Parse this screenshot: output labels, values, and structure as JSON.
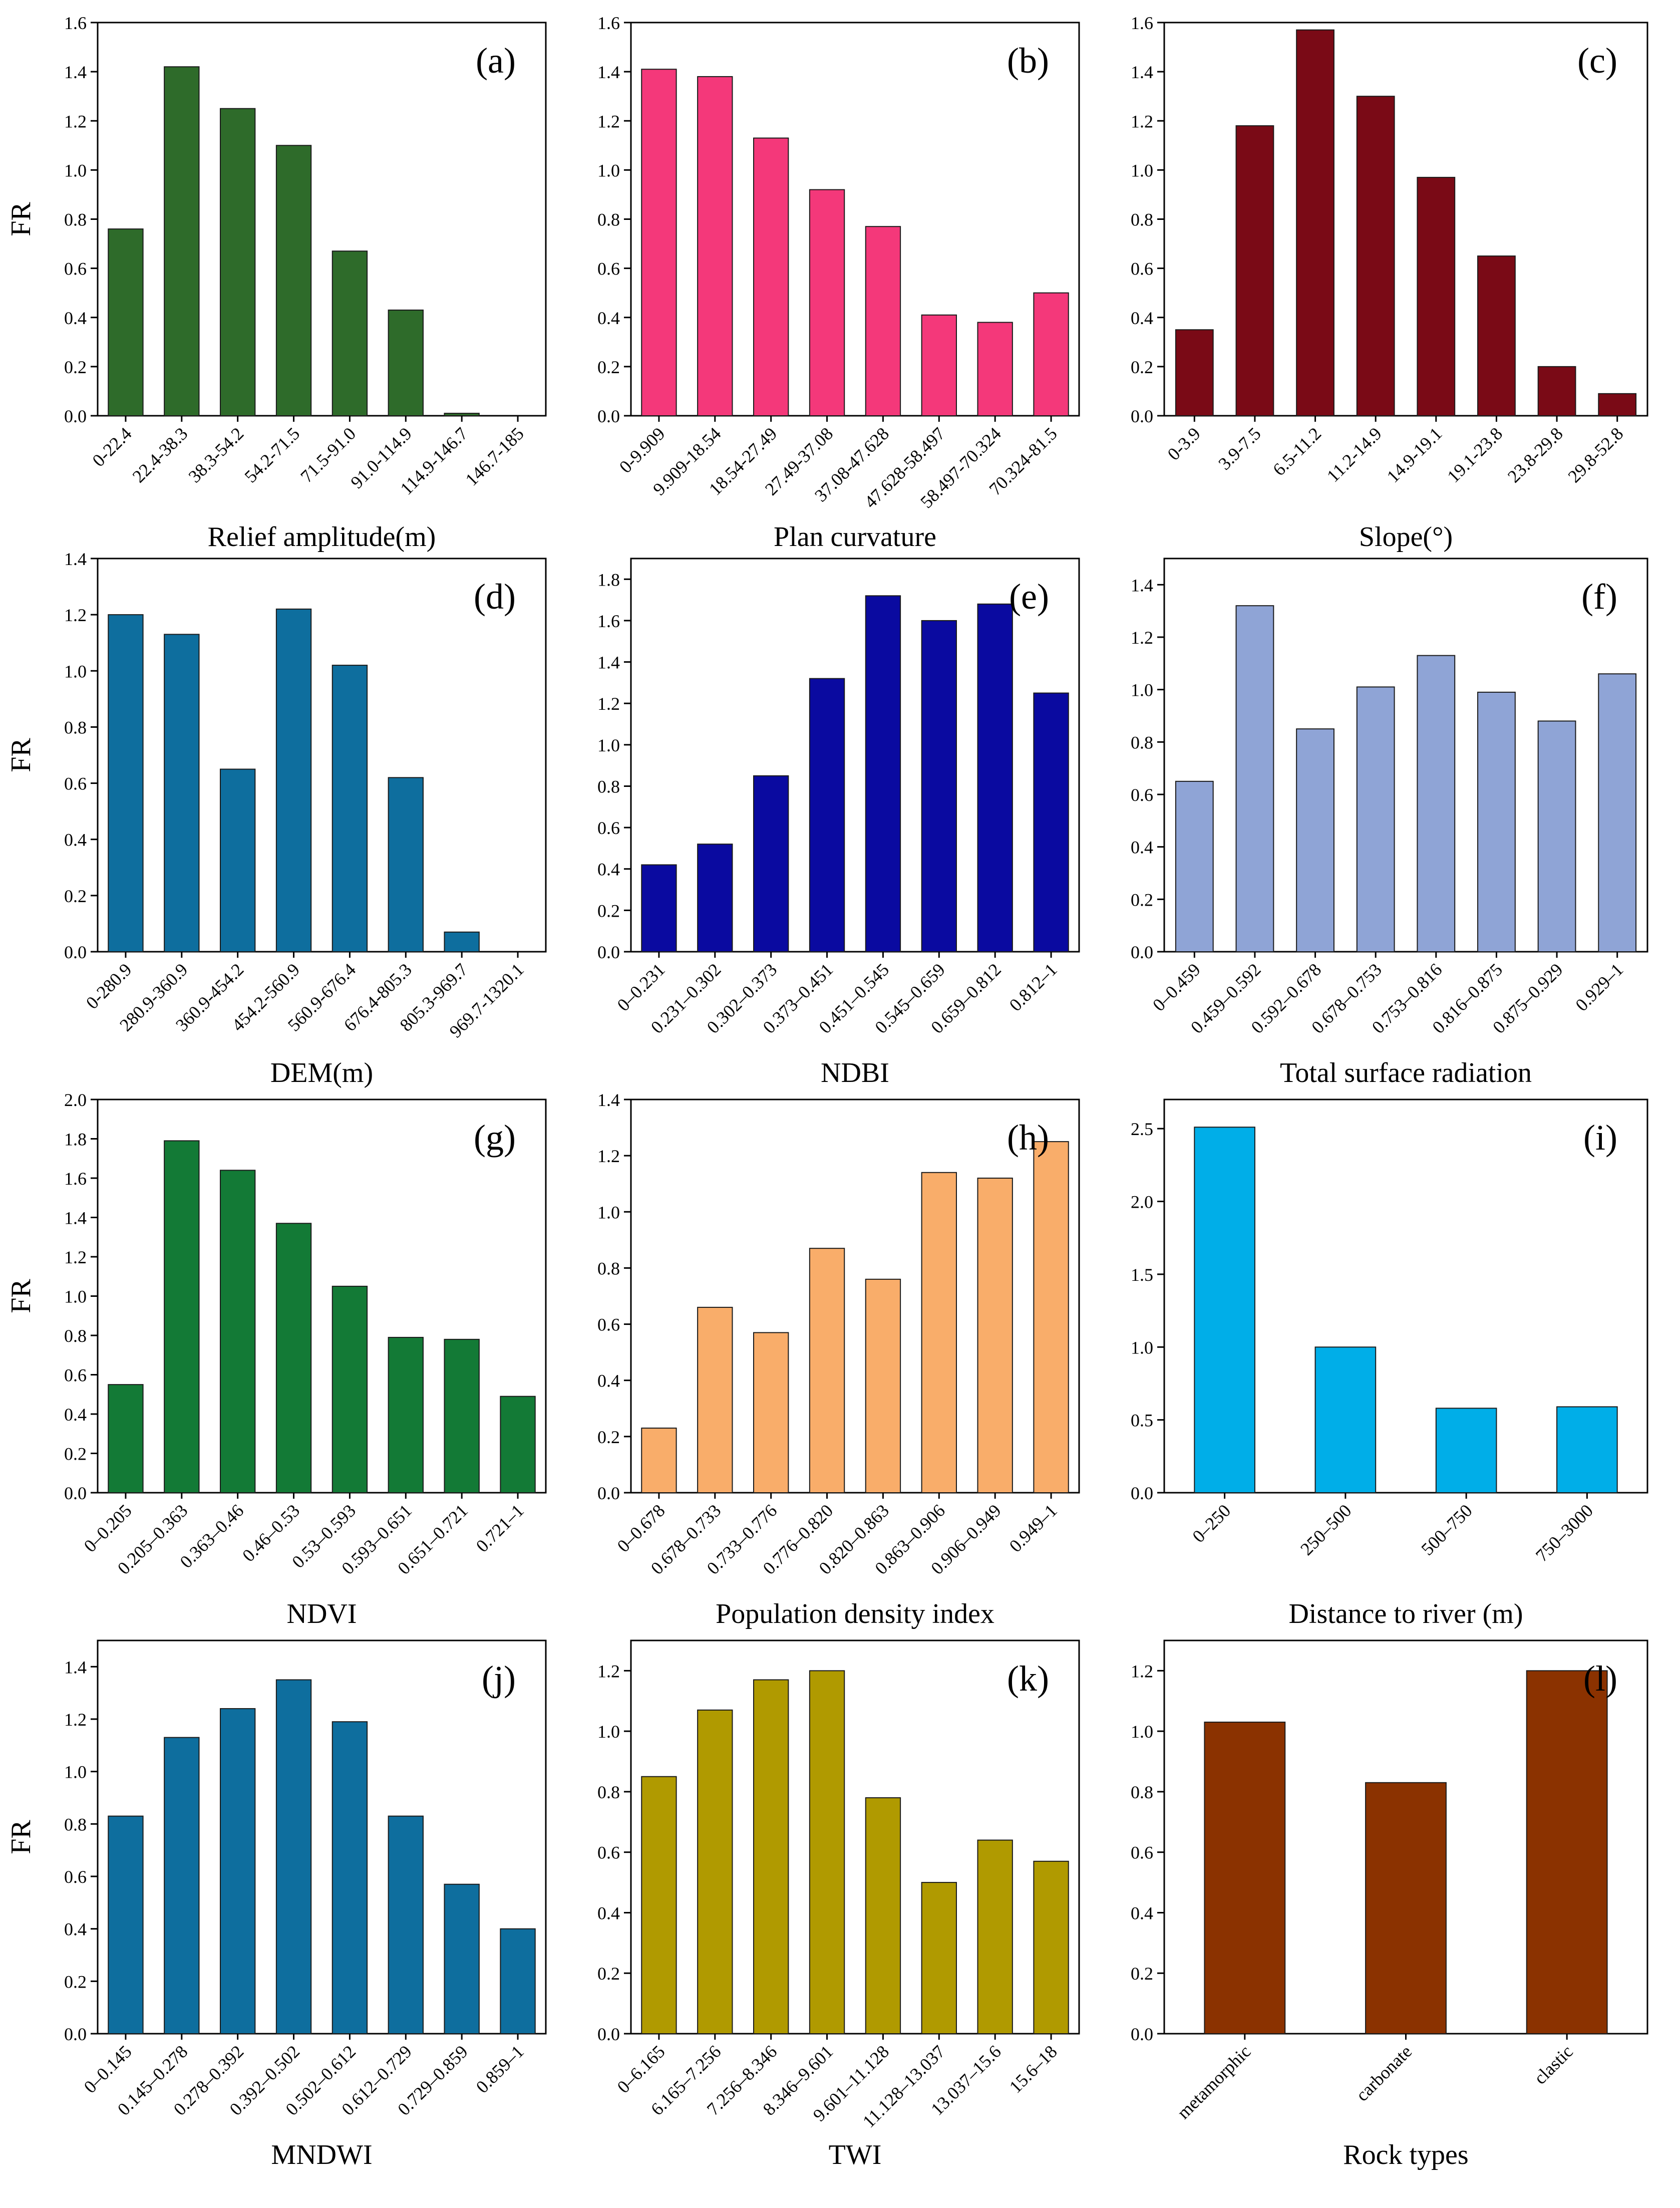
{
  "chart_data": [
    {
      "id": "a",
      "type": "bar",
      "tag": "(a)",
      "xlabel": "Relief amplitude(m)",
      "ylabel": "FR",
      "ylim": [
        0,
        1.6
      ],
      "yticks": [
        0.0,
        0.2,
        0.4,
        0.6,
        0.8,
        1.0,
        1.2,
        1.4,
        1.6
      ],
      "tick_decimals": 1,
      "color": "#2E6B2A",
      "categories": [
        "0-22.4",
        "22.4-38.3",
        "38.3-54.2",
        "54.2-71.5",
        "71.5-91.0",
        "91.0-114.9",
        "114.9-146.7",
        "146.7-185"
      ],
      "values": [
        0.76,
        1.42,
        1.25,
        1.1,
        0.67,
        0.43,
        0.01,
        0.0
      ]
    },
    {
      "id": "b",
      "type": "bar",
      "tag": "(b)",
      "xlabel": "Plan curvature",
      "ylabel": "",
      "ylim": [
        0,
        1.6
      ],
      "yticks": [
        0.0,
        0.2,
        0.4,
        0.6,
        0.8,
        1.0,
        1.2,
        1.4,
        1.6
      ],
      "tick_decimals": 1,
      "color": "#F4387A",
      "categories": [
        "0-9.909",
        "9.909-18.54",
        "18.54-27.49",
        "27.49-37.08",
        "37.08-47.628",
        "47.628-58.497",
        "58.497-70.324",
        "70.324-81.5"
      ],
      "values": [
        1.41,
        1.38,
        1.13,
        0.92,
        0.77,
        0.41,
        0.38,
        0.5
      ]
    },
    {
      "id": "c",
      "type": "bar",
      "tag": "(c)",
      "xlabel": "Slope(°)",
      "ylabel": "",
      "ylim": [
        0,
        1.6
      ],
      "yticks": [
        0.0,
        0.2,
        0.4,
        0.6,
        0.8,
        1.0,
        1.2,
        1.4,
        1.6
      ],
      "tick_decimals": 1,
      "color": "#7A0A16",
      "categories": [
        "0-3.9",
        "3.9-7.5",
        "6.5-11.2",
        "11.2-14.9",
        "14.9-19.1",
        "19.1-23.8",
        "23.8-29.8",
        "29.8-52.8"
      ],
      "values": [
        0.35,
        1.18,
        1.57,
        1.3,
        0.97,
        0.65,
        0.2,
        0.09
      ]
    },
    {
      "id": "d",
      "type": "bar",
      "tag": "(d)",
      "xlabel": "DEM(m)",
      "ylabel": "FR",
      "ylim": [
        0,
        1.4
      ],
      "yticks": [
        0.0,
        0.2,
        0.4,
        0.6,
        0.8,
        1.0,
        1.2,
        1.4
      ],
      "tick_decimals": 1,
      "color": "#0E6E9E",
      "categories": [
        "0-280.9",
        "280.9-360.9",
        "360.9-454.2",
        "454.2-560.9",
        "560.9-676.4",
        "676.4-805.3",
        "805.3-969.7",
        "969.7-1320.1"
      ],
      "values": [
        1.2,
        1.13,
        0.65,
        1.22,
        1.02,
        0.62,
        0.07,
        0.0
      ]
    },
    {
      "id": "e",
      "type": "bar",
      "tag": "(e)",
      "xlabel": "NDBI",
      "ylabel": "",
      "ylim": [
        0,
        1.9
      ],
      "yticks": [
        0.0,
        0.2,
        0.4,
        0.6,
        0.8,
        1.0,
        1.2,
        1.4,
        1.6,
        1.8
      ],
      "tick_decimals": 1,
      "color": "#0A0AA0",
      "categories": [
        "0–0.231",
        "0.231–0.302",
        "0.302–0.373",
        "0.373–0.451",
        "0.451–0.545",
        "0.545–0.659",
        "0.659–0.812",
        "0.812–1"
      ],
      "values": [
        0.42,
        0.52,
        0.85,
        1.32,
        1.72,
        1.6,
        1.68,
        1.25
      ]
    },
    {
      "id": "f",
      "type": "bar",
      "tag": "(f)",
      "xlabel": "Total surface radiation",
      "ylabel": "",
      "ylim": [
        0,
        1.5
      ],
      "yticks": [
        0.0,
        0.2,
        0.4,
        0.6,
        0.8,
        1.0,
        1.2,
        1.4
      ],
      "tick_decimals": 1,
      "color": "#8FA4D6",
      "categories": [
        "0–0.459",
        "0.459–0.592",
        "0.592–0.678",
        "0.678–0.753",
        "0.753–0.816",
        "0.816–0.875",
        "0.875–0.929",
        "0.929–1"
      ],
      "values": [
        0.65,
        1.32,
        0.85,
        1.01,
        1.13,
        0.99,
        0.88,
        1.06
      ]
    },
    {
      "id": "g",
      "type": "bar",
      "tag": "(g)",
      "xlabel": "NDVI",
      "ylabel": "FR",
      "ylim": [
        0,
        2.0
      ],
      "yticks": [
        0.0,
        0.2,
        0.4,
        0.6,
        0.8,
        1.0,
        1.2,
        1.4,
        1.6,
        1.8,
        2.0
      ],
      "tick_decimals": 1,
      "color": "#137A36",
      "categories": [
        "0–0.205",
        "0.205–0.363",
        "0.363–0.46",
        "0.46–0.53",
        "0.53–0.593",
        "0.593–0.651",
        "0.651–0.721",
        "0.721–1"
      ],
      "values": [
        0.55,
        1.79,
        1.64,
        1.37,
        1.05,
        0.79,
        0.78,
        0.49
      ]
    },
    {
      "id": "h",
      "type": "bar",
      "tag": "(h)",
      "xlabel": "Population density index",
      "ylabel": "",
      "ylim": [
        0,
        1.4
      ],
      "yticks": [
        0.0,
        0.2,
        0.4,
        0.6,
        0.8,
        1.0,
        1.2,
        1.4
      ],
      "tick_decimals": 1,
      "color": "#F9AD6A",
      "categories": [
        "0–0.678",
        "0.678–0.733",
        "0.733–0.776",
        "0.776–0.820",
        "0.820–0.863",
        "0.863–0.906",
        "0.906–0.949",
        "0.949–1"
      ],
      "values": [
        0.23,
        0.66,
        0.57,
        0.87,
        0.76,
        1.14,
        1.12,
        1.25
      ]
    },
    {
      "id": "i",
      "type": "bar",
      "tag": "(i)",
      "xlabel": "Distance to river (m)",
      "ylabel": "",
      "ylim": [
        0,
        2.7
      ],
      "yticks": [
        0.0,
        0.5,
        1.0,
        1.5,
        2.0,
        2.5
      ],
      "tick_decimals": 1,
      "color": "#00AEE8",
      "categories": [
        "0–250",
        "250–500",
        "500–750",
        "750–3000"
      ],
      "values": [
        2.51,
        1.0,
        0.58,
        0.59
      ]
    },
    {
      "id": "j",
      "type": "bar",
      "tag": "(j)",
      "xlabel": "MNDWI",
      "ylabel": "FR",
      "ylim": [
        0,
        1.5
      ],
      "yticks": [
        0.0,
        0.2,
        0.4,
        0.6,
        0.8,
        1.0,
        1.2,
        1.4
      ],
      "tick_decimals": 1,
      "color": "#0E6E9E",
      "categories": [
        "0–0.145",
        "0.145–0.278",
        "0.278–0.392",
        "0.392–0.502",
        "0.502–0.612",
        "0.612–0.729",
        "0.729–0.859",
        "0.859–1"
      ],
      "values": [
        0.83,
        1.13,
        1.24,
        1.35,
        1.19,
        0.83,
        0.57,
        0.4
      ]
    },
    {
      "id": "k",
      "type": "bar",
      "tag": "(k)",
      "xlabel": "TWI",
      "ylabel": "",
      "ylim": [
        0,
        1.3
      ],
      "yticks": [
        0.0,
        0.2,
        0.4,
        0.6,
        0.8,
        1.0,
        1.2
      ],
      "tick_decimals": 1,
      "color": "#B09A00",
      "categories": [
        "0–6.165",
        "6.165–7.256",
        "7.256–8.346",
        "8.346–9.601",
        "9.601–11.128",
        "11.128–13.037",
        "13.037–15.6",
        "15.6–18"
      ],
      "values": [
        0.85,
        1.07,
        1.17,
        1.2,
        0.78,
        0.5,
        0.64,
        0.57
      ]
    },
    {
      "id": "l",
      "type": "bar",
      "tag": "(l)",
      "xlabel": "Rock types",
      "ylabel": "",
      "ylim": [
        0,
        1.3
      ],
      "yticks": [
        0.0,
        0.2,
        0.4,
        0.6,
        0.8,
        1.0,
        1.2
      ],
      "tick_decimals": 1,
      "color": "#8B3200",
      "categories": [
        "metamorphic",
        "carbonate",
        "clastic"
      ],
      "values": [
        1.03,
        0.83,
        1.2
      ]
    }
  ]
}
